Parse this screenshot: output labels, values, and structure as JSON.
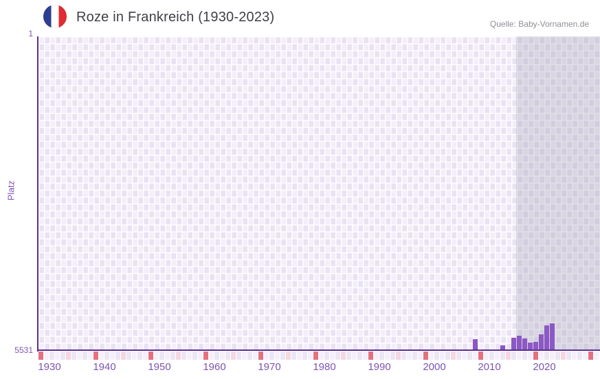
{
  "header": {
    "title": "Roze in Frankreich (1930-2023)",
    "source": "Quelle: Baby-Vornamen.de",
    "flag_icon": "france-flag-round",
    "flag_colors": {
      "blue": "#2d3e92",
      "white": "#ffffff",
      "red": "#e02b33"
    }
  },
  "y_axis": {
    "label": "Platz",
    "top_tick": "1",
    "bottom_tick": "5531"
  },
  "chart_data": {
    "type": "bar",
    "title": "Roze in Frankreich (1930-2023)",
    "xlabel": "",
    "ylabel": "Platz",
    "y_inverted": true,
    "ylim": [
      1,
      5531
    ],
    "x_range_years": [
      1930,
      2023
    ],
    "grid_extends_to_year": 2031,
    "future_region_start_year": 2024,
    "x_ticks": [
      1930,
      1940,
      1950,
      1960,
      1970,
      1980,
      1990,
      2000,
      2010,
      2020
    ],
    "legend": "none",
    "grid": "checkerboard",
    "series": [
      {
        "name": "Platz von Roze in Frankreich",
        "points": [
          {
            "year": 2009,
            "rank": 5340
          },
          {
            "year": 2014,
            "rank": 5450
          },
          {
            "year": 2016,
            "rank": 5310
          },
          {
            "year": 2017,
            "rank": 5280
          },
          {
            "year": 2018,
            "rank": 5330
          },
          {
            "year": 2019,
            "rank": 5400
          },
          {
            "year": 2020,
            "rank": 5385
          },
          {
            "year": 2021,
            "rank": 5250
          },
          {
            "year": 2022,
            "rank": 5100
          },
          {
            "year": 2023,
            "rank": 5060
          }
        ]
      }
    ],
    "year_strip": {
      "decade_marker_years": [
        1930,
        1940,
        1950,
        1960,
        1970,
        1980,
        1990,
        2000,
        2010,
        2020,
        2030
      ],
      "mid_decade_marker_years": [
        1935,
        1945,
        1955,
        1965,
        1975,
        1985,
        1995,
        2005,
        2015,
        2025
      ]
    }
  },
  "colors": {
    "bar": "#8c58c4",
    "axis": "#5b2e91",
    "tick_text": "#7d53b3",
    "title_text": "#3f3f46",
    "source_text": "#8e8e97",
    "grid_cell_dark": "#e9e2f3",
    "grid_cell_light": "#f3eefa",
    "strip_cell_dark": "#ece6f4",
    "strip_cell_light": "#f4f0fa",
    "decade_cell": "#e4717f",
    "mid_decade_cell": "#f4d7e1",
    "future_overlay": "rgba(158,154,176,0.30)"
  }
}
